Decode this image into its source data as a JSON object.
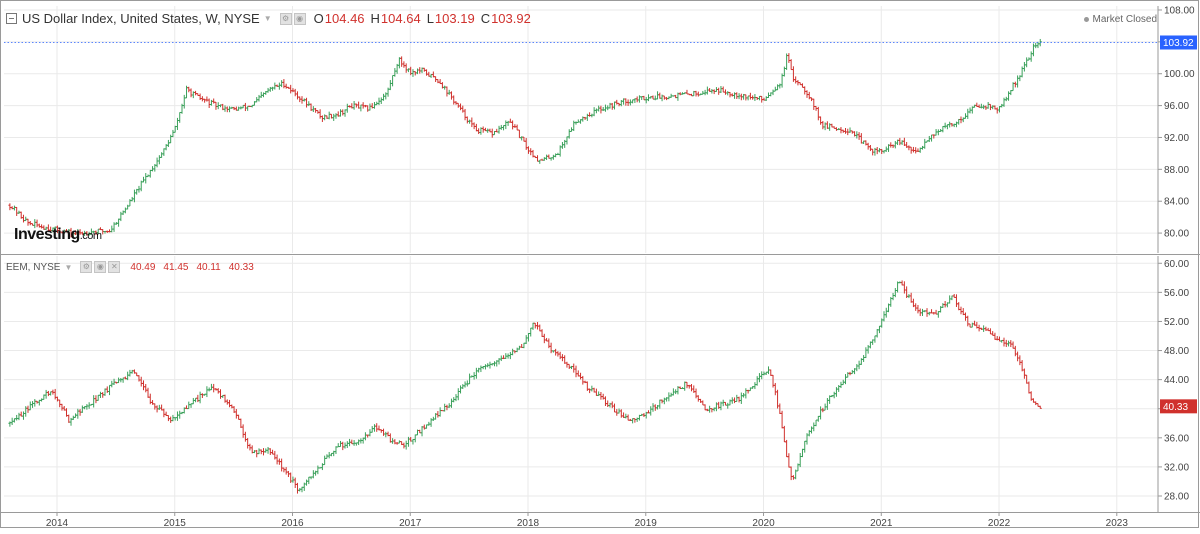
{
  "header": {
    "title": "US Dollar Index, United States, W, NYSE",
    "open_label": "O",
    "open": "104.46",
    "high_label": "H",
    "high": "104.64",
    "low_label": "L",
    "low": "103.19",
    "close_label": "C",
    "close": "103.92",
    "status": "Market Closed"
  },
  "logo": {
    "brand": "Investing",
    "suffix": ".com"
  },
  "sub_header": {
    "title": "EEM, NYSE",
    "open": "40.49",
    "high": "41.45",
    "low": "40.11",
    "close": "40.33"
  },
  "colors": {
    "up": "#3aa05a",
    "down": "#d0312d",
    "dxy_price_tag": "#2962ff",
    "eem_price_tag": "#d0312d",
    "grid": "#eaeaea"
  },
  "chart_data": [
    {
      "type": "ohlc",
      "title": "US Dollar Index, United States, W, NYSE",
      "x_ticks": [
        "2014",
        "2015",
        "2016",
        "2017",
        "2018",
        "2019",
        "2020",
        "2021",
        "2022",
        "2023"
      ],
      "y_ticks": [
        "80.00",
        "84.00",
        "88.00",
        "92.00",
        "96.00",
        "100.00",
        "104.00",
        "108.00"
      ],
      "ylim": [
        77.5,
        108.5
      ],
      "last_price": "103.92",
      "series": [
        {
          "x": [
            2013.6,
            2013.75,
            2013.9,
            2014.0,
            2014.15,
            2014.3,
            2014.45,
            2014.6,
            2014.7,
            2014.8,
            2014.9,
            2015.0,
            2015.1,
            2015.2,
            2015.35,
            2015.5,
            2015.65,
            2015.8,
            2015.92,
            2016.1,
            2016.25,
            2016.4,
            2016.5,
            2016.65,
            2016.8,
            2016.9,
            2017.0,
            2017.1,
            2017.25,
            2017.4,
            2017.55,
            2017.7,
            2017.85,
            2018.0,
            2018.1,
            2018.25,
            2018.4,
            2018.6,
            2018.8,
            2019.0,
            2019.2,
            2019.4,
            2019.6,
            2019.75,
            2019.9,
            2020.0,
            2020.15,
            2020.2,
            2020.25,
            2020.3,
            2020.4,
            2020.5,
            2020.6,
            2020.75,
            2020.9,
            2021.0,
            2021.15,
            2021.3,
            2021.4,
            2021.5,
            2021.65,
            2021.8,
            2021.9,
            2022.0,
            2022.1,
            2022.2,
            2022.3,
            2022.35
          ],
          "y": [
            83.5,
            81.3,
            80.7,
            80.4,
            79.9,
            80.2,
            80.3,
            83.5,
            85.8,
            88.0,
            90.2,
            93.0,
            98.0,
            97.0,
            96.0,
            95.5,
            96.0,
            98.0,
            98.8,
            96.5,
            94.5,
            95.0,
            96.0,
            95.6,
            97.5,
            101.8,
            100.2,
            100.4,
            99.0,
            96.0,
            93.0,
            92.5,
            94.0,
            90.5,
            89.0,
            90.0,
            94.0,
            95.5,
            96.5,
            97.0,
            97.2,
            97.5,
            98.0,
            97.5,
            97.0,
            96.8,
            99.0,
            102.4,
            99.3,
            99.0,
            97.0,
            93.5,
            93.2,
            92.8,
            90.5,
            90.2,
            91.5,
            90.0,
            92.0,
            93.0,
            94.0,
            96.0,
            96.0,
            95.5,
            98.0,
            100.5,
            103.5,
            103.92
          ]
        }
      ]
    },
    {
      "type": "ohlc",
      "title": "EEM, NYSE",
      "x_ticks": [
        "2014",
        "2015",
        "2016",
        "2017",
        "2018",
        "2019",
        "2020",
        "2021",
        "2022",
        "2023"
      ],
      "y_ticks": [
        "28.00",
        "32.00",
        "36.00",
        "40.00",
        "44.00",
        "48.00",
        "52.00",
        "56.00",
        "60.00"
      ],
      "ylim": [
        25.8,
        61.0
      ],
      "last_price": "40.33",
      "series": [
        {
          "x": [
            2013.6,
            2013.75,
            2013.95,
            2014.1,
            2014.3,
            2014.45,
            2014.65,
            2014.8,
            2014.95,
            2015.1,
            2015.3,
            2015.45,
            2015.55,
            2015.65,
            2015.8,
            2016.0,
            2016.05,
            2016.25,
            2016.4,
            2016.55,
            2016.7,
            2016.85,
            2016.95,
            2017.15,
            2017.35,
            2017.55,
            2017.75,
            2017.95,
            2018.05,
            2018.2,
            2018.35,
            2018.5,
            2018.65,
            2018.8,
            2018.9,
            2019.05,
            2019.25,
            2019.35,
            2019.5,
            2019.65,
            2019.8,
            2019.95,
            2020.05,
            2020.15,
            2020.2,
            2020.25,
            2020.35,
            2020.5,
            2020.65,
            2020.8,
            2020.95,
            2021.05,
            2021.15,
            2021.3,
            2021.45,
            2021.6,
            2021.75,
            2021.9,
            2022.0,
            2022.1,
            2022.2,
            2022.25,
            2022.3,
            2022.35
          ],
          "y": [
            38.0,
            40.0,
            42.5,
            38.5,
            41.0,
            43.0,
            45.0,
            41.0,
            38.5,
            40.0,
            43.0,
            41.0,
            38.0,
            34.0,
            34.5,
            30.0,
            28.5,
            32.5,
            35.0,
            35.5,
            37.5,
            35.5,
            35.0,
            38.0,
            41.0,
            45.0,
            46.5,
            48.5,
            52.0,
            48.0,
            46.0,
            43.0,
            41.0,
            39.0,
            38.5,
            40.0,
            42.5,
            43.5,
            40.0,
            40.5,
            41.5,
            44.0,
            45.5,
            38.5,
            33.0,
            30.0,
            35.5,
            40.0,
            43.5,
            46.0,
            50.0,
            54.0,
            57.5,
            53.5,
            53.0,
            55.5,
            51.5,
            50.5,
            49.5,
            49.0,
            45.5,
            42.5,
            40.5,
            40.33
          ]
        }
      ]
    }
  ]
}
